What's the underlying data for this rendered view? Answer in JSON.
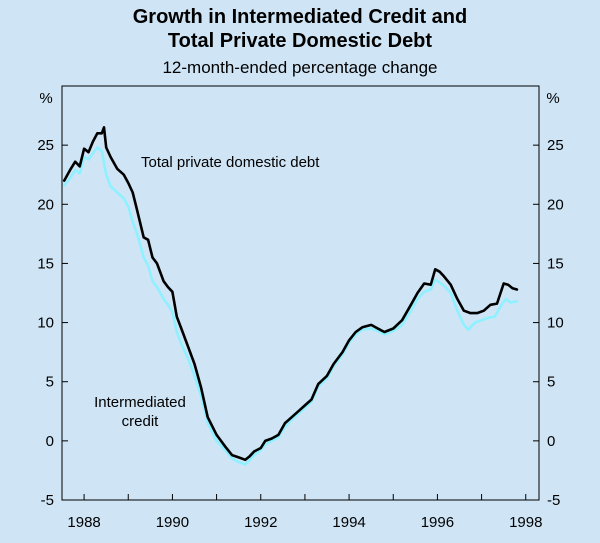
{
  "chart_data": {
    "type": "line",
    "title_lines": [
      "Growth in Intermediated Credit and",
      "Total Private Domestic Debt"
    ],
    "subtitle": "12-month-ended percentage change",
    "y_unit_left": "%",
    "y_unit_right": "%",
    "xlim": [
      1987.5,
      1998.3
    ],
    "ylim": [
      -5,
      30
    ],
    "x_ticks": [
      "1988",
      "1990",
      "1992",
      "1994",
      "1996",
      "1998"
    ],
    "y_ticks": [
      "-5",
      "0",
      "5",
      "10",
      "15",
      "20",
      "25"
    ],
    "annotations": [
      {
        "name": "annotation-total-debt",
        "lines": [
          "Total private domestic debt"
        ]
      },
      {
        "name": "annotation-intermediated",
        "lines": [
          "Intermediated",
          "credit"
        ]
      }
    ],
    "series": [
      {
        "name": "Total private domestic debt",
        "color": "#000000",
        "points": [
          [
            1987.55,
            22.0
          ],
          [
            1987.7,
            23.0
          ],
          [
            1987.8,
            23.6
          ],
          [
            1987.9,
            23.2
          ],
          [
            1988.0,
            24.7
          ],
          [
            1988.1,
            24.4
          ],
          [
            1988.2,
            25.3
          ],
          [
            1988.3,
            26.0
          ],
          [
            1988.4,
            26.0
          ],
          [
            1988.45,
            26.5
          ],
          [
            1988.5,
            24.8
          ],
          [
            1988.6,
            24.0
          ],
          [
            1988.75,
            23.0
          ],
          [
            1988.9,
            22.5
          ],
          [
            1989.0,
            21.8
          ],
          [
            1989.1,
            21.0
          ],
          [
            1989.2,
            19.5
          ],
          [
            1989.35,
            17.2
          ],
          [
            1989.45,
            17.0
          ],
          [
            1989.55,
            15.5
          ],
          [
            1989.65,
            15.0
          ],
          [
            1989.8,
            13.5
          ],
          [
            1989.9,
            13.0
          ],
          [
            1990.0,
            12.6
          ],
          [
            1990.1,
            10.5
          ],
          [
            1990.2,
            9.5
          ],
          [
            1990.35,
            8.0
          ],
          [
            1990.5,
            6.5
          ],
          [
            1990.65,
            4.5
          ],
          [
            1990.8,
            2.0
          ],
          [
            1991.0,
            0.5
          ],
          [
            1991.2,
            -0.5
          ],
          [
            1991.35,
            -1.2
          ],
          [
            1991.5,
            -1.4
          ],
          [
            1991.65,
            -1.6
          ],
          [
            1991.75,
            -1.3
          ],
          [
            1991.85,
            -0.9
          ],
          [
            1992.0,
            -0.6
          ],
          [
            1992.1,
            0.0
          ],
          [
            1992.25,
            0.2
          ],
          [
            1992.4,
            0.5
          ],
          [
            1992.55,
            1.5
          ],
          [
            1992.7,
            2.0
          ],
          [
            1992.85,
            2.5
          ],
          [
            1993.0,
            3.0
          ],
          [
            1993.15,
            3.5
          ],
          [
            1993.3,
            4.8
          ],
          [
            1993.5,
            5.5
          ],
          [
            1993.65,
            6.5
          ],
          [
            1993.85,
            7.5
          ],
          [
            1994.0,
            8.5
          ],
          [
            1994.15,
            9.2
          ],
          [
            1994.3,
            9.6
          ],
          [
            1994.5,
            9.8
          ],
          [
            1994.65,
            9.5
          ],
          [
            1994.8,
            9.2
          ],
          [
            1995.0,
            9.5
          ],
          [
            1995.2,
            10.2
          ],
          [
            1995.4,
            11.5
          ],
          [
            1995.55,
            12.5
          ],
          [
            1995.7,
            13.3
          ],
          [
            1995.85,
            13.2
          ],
          [
            1995.95,
            14.5
          ],
          [
            1996.05,
            14.3
          ],
          [
            1996.15,
            13.9
          ],
          [
            1996.3,
            13.2
          ],
          [
            1996.45,
            12.0
          ],
          [
            1996.6,
            11.0
          ],
          [
            1996.75,
            10.8
          ],
          [
            1996.9,
            10.8
          ],
          [
            1997.05,
            11.0
          ],
          [
            1997.2,
            11.5
          ],
          [
            1997.35,
            11.6
          ],
          [
            1997.5,
            13.3
          ],
          [
            1997.6,
            13.2
          ],
          [
            1997.7,
            12.9
          ],
          [
            1997.8,
            12.8
          ]
        ]
      },
      {
        "name": "Intermediated credit",
        "color": "#8ff0ff",
        "points": [
          [
            1987.55,
            21.6
          ],
          [
            1987.7,
            22.3
          ],
          [
            1987.8,
            22.9
          ],
          [
            1987.9,
            22.6
          ],
          [
            1988.0,
            24.0
          ],
          [
            1988.1,
            23.8
          ],
          [
            1988.2,
            24.3
          ],
          [
            1988.3,
            24.8
          ],
          [
            1988.4,
            24.5
          ],
          [
            1988.5,
            22.5
          ],
          [
            1988.6,
            21.5
          ],
          [
            1988.75,
            21.0
          ],
          [
            1988.9,
            20.5
          ],
          [
            1989.0,
            19.8
          ],
          [
            1989.1,
            18.5
          ],
          [
            1989.2,
            17.5
          ],
          [
            1989.35,
            15.5
          ],
          [
            1989.45,
            14.8
          ],
          [
            1989.55,
            13.5
          ],
          [
            1989.65,
            13.0
          ],
          [
            1989.8,
            12.0
          ],
          [
            1989.9,
            11.5
          ],
          [
            1990.0,
            10.9
          ],
          [
            1990.1,
            9.2
          ],
          [
            1990.2,
            8.2
          ],
          [
            1990.35,
            7.0
          ],
          [
            1990.5,
            5.5
          ],
          [
            1990.65,
            3.8
          ],
          [
            1990.8,
            1.5
          ],
          [
            1991.0,
            0.0
          ],
          [
            1991.2,
            -0.8
          ],
          [
            1991.35,
            -1.5
          ],
          [
            1991.5,
            -1.8
          ],
          [
            1991.65,
            -2.0
          ],
          [
            1991.75,
            -1.6
          ],
          [
            1991.85,
            -1.2
          ],
          [
            1992.0,
            -0.8
          ],
          [
            1992.1,
            -0.3
          ],
          [
            1992.25,
            0.0
          ],
          [
            1992.4,
            0.3
          ],
          [
            1992.55,
            1.2
          ],
          [
            1992.7,
            1.8
          ],
          [
            1992.85,
            2.3
          ],
          [
            1993.0,
            2.8
          ],
          [
            1993.15,
            3.3
          ],
          [
            1993.3,
            4.6
          ],
          [
            1993.5,
            5.3
          ],
          [
            1993.65,
            6.3
          ],
          [
            1993.85,
            7.3
          ],
          [
            1994.0,
            8.3
          ],
          [
            1994.15,
            9.0
          ],
          [
            1994.3,
            9.4
          ],
          [
            1994.5,
            9.5
          ],
          [
            1994.65,
            9.3
          ],
          [
            1994.8,
            9.0
          ],
          [
            1995.0,
            9.3
          ],
          [
            1995.2,
            9.8
          ],
          [
            1995.4,
            11.0
          ],
          [
            1995.55,
            12.0
          ],
          [
            1995.7,
            12.6
          ],
          [
            1995.85,
            12.8
          ],
          [
            1995.95,
            13.6
          ],
          [
            1996.05,
            13.4
          ],
          [
            1996.15,
            13.1
          ],
          [
            1996.3,
            12.5
          ],
          [
            1996.45,
            11.0
          ],
          [
            1996.6,
            9.8
          ],
          [
            1996.7,
            9.4
          ],
          [
            1996.85,
            10.0
          ],
          [
            1997.0,
            10.2
          ],
          [
            1997.15,
            10.4
          ],
          [
            1997.3,
            10.5
          ],
          [
            1997.45,
            11.5
          ],
          [
            1997.55,
            12.0
          ],
          [
            1997.65,
            11.7
          ],
          [
            1997.8,
            11.8
          ]
        ]
      }
    ]
  }
}
